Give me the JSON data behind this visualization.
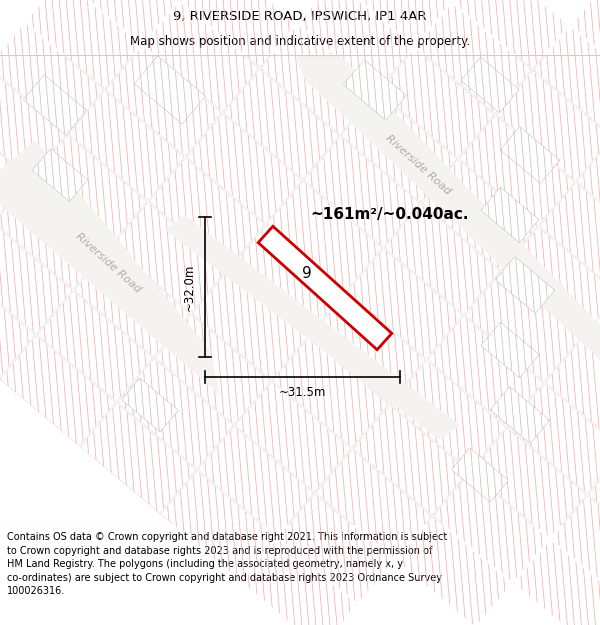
{
  "title_line1": "9, RIVERSIDE ROAD, IPSWICH, IP1 4AR",
  "title_line2": "Map shows position and indicative extent of the property.",
  "footer_text_lines": [
    "Contains OS data © Crown copyright and database right 2021. This information is subject",
    "to Crown copyright and database rights 2023 and is reproduced with the permission of",
    "HM Land Registry. The polygons (including the associated geometry, namely x, y",
    "co-ordinates) are subject to Crown copyright and database rights 2023 Ordnance Survey",
    "100026316."
  ],
  "map_bg": "#f5f3f0",
  "area_label": "~161m²/~0.040ac.",
  "plot_number": "9",
  "dim_width": "~31.5m",
  "dim_height": "~32.0m",
  "road_label": "Riverside Road",
  "plot_edge": "#cc0000",
  "line_color_pink": "#f0b0b0",
  "line_color_gray": "#c8c4be",
  "block_fill": "#dedad6",
  "road_fill": "#f5f3f0"
}
